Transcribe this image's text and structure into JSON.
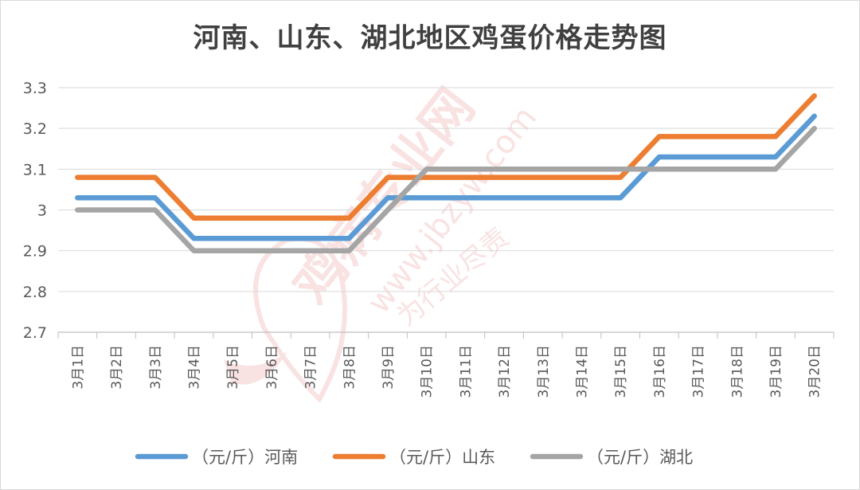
{
  "chart_data": {
    "type": "line",
    "title": "河南、山东、湖北地区鸡蛋价格走势图",
    "xlabel": "",
    "ylabel": "",
    "ylim": [
      2.7,
      3.3
    ],
    "yticks": [
      "2.7",
      "2.8",
      "2.9",
      "3",
      "3.1",
      "3.2",
      "3.3"
    ],
    "grid": true,
    "legend_position": "bottom",
    "categories": [
      "3月1日",
      "3月2日",
      "3月3日",
      "3月4日",
      "3月5日",
      "3月6日",
      "3月7日",
      "3月8日",
      "3月9日",
      "3月10日",
      "3月11日",
      "3月12日",
      "3月13日",
      "3月14日",
      "3月15日",
      "3月16日",
      "3月17日",
      "3月18日",
      "3月19日",
      "3月20日"
    ],
    "series": [
      {
        "name": "（元/斤）河南",
        "color": "#5b9bd5",
        "values": [
          3.03,
          3.03,
          3.03,
          2.93,
          2.93,
          2.93,
          2.93,
          2.93,
          3.03,
          3.03,
          3.03,
          3.03,
          3.03,
          3.03,
          3.03,
          3.13,
          3.13,
          3.13,
          3.13,
          3.23
        ]
      },
      {
        "name": "（元/斤）山东",
        "color": "#ed7d31",
        "values": [
          3.08,
          3.08,
          3.08,
          2.98,
          2.98,
          2.98,
          2.98,
          2.98,
          3.08,
          3.08,
          3.08,
          3.08,
          3.08,
          3.08,
          3.08,
          3.18,
          3.18,
          3.18,
          3.18,
          3.28
        ]
      },
      {
        "name": "（元/斤）湖北",
        "color": "#a5a5a5",
        "values": [
          3.0,
          3.0,
          3.0,
          2.9,
          2.9,
          2.9,
          2.9,
          2.9,
          3.0,
          3.1,
          3.1,
          3.1,
          3.1,
          3.1,
          3.1,
          3.1,
          3.1,
          3.1,
          3.1,
          3.2
        ]
      }
    ]
  },
  "watermark": {
    "main_text": "鸡病专业网",
    "url_text": "www.jbzyw.com",
    "sub_text": "为行业尽责",
    "color": "#e05050"
  }
}
